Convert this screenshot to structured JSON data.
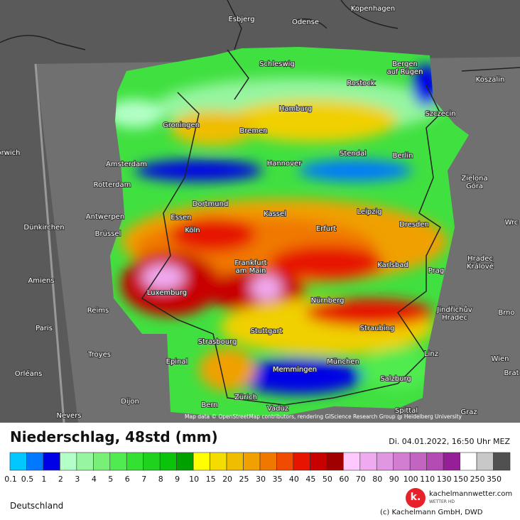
{
  "map": {
    "cities": [
      "Kopenhagen",
      "Esbjerg",
      "Odense",
      "Schleswig",
      "Bergen\nauf Rügen",
      "Koszalin",
      "Rostock",
      "Hamburg",
      "Szczecin",
      "Groningen",
      "Bremen",
      "Stendal",
      "Berlin",
      "orwich",
      "Amsterdam",
      "Hannover",
      "Zielona\nGóra",
      "Rotterdam",
      "Dortmund",
      "Leipzig",
      "Kassel",
      "Antwerpen",
      "Essen",
      "Dresden",
      "Wrc",
      "Dünkirchen",
      "Brüssel",
      "Köln",
      "Erfurt",
      "Hradec\nKrálové",
      "Frankfurt\nam Main",
      "Karlsbad",
      "Prag",
      "Amiens",
      "Luxemburg",
      "Nürnberg",
      "Reims",
      "Jindřichův\nHradec",
      "Brno",
      "Paris",
      "Stuttgart",
      "Straubing",
      "Strasbourg",
      "Linz",
      "Troyes",
      "Wien",
      "Brat",
      "München",
      "Epinal",
      "Memmingen",
      "Orléans",
      "Salzburg",
      "Zürich",
      "Dijon",
      "Bern",
      "Vaduz",
      "Spittal",
      "Graz",
      "Nevers"
    ],
    "credit": "Map data © OpenStreetMap contributors, rendering GIScience Research Group @ Heidelberg University"
  },
  "legend": {
    "title": "Niederschlag, 48std (mm)",
    "timestamp": "Di. 04.01.2022, 16:50 Uhr MEZ",
    "labels": [
      "0.1",
      "0.5",
      "1",
      "2",
      "3",
      "4",
      "5",
      "6",
      "7",
      "8",
      "9",
      "10",
      "15",
      "20",
      "25",
      "30",
      "35",
      "40",
      "45",
      "50",
      "60",
      "70",
      "80",
      "90",
      "100",
      "110",
      "130",
      "150",
      "250",
      "350"
    ],
    "colors": [
      "#00c8ff",
      "#0078ff",
      "#0000e6",
      "#b4ffc8",
      "#96f5a0",
      "#78f078",
      "#50eb50",
      "#32e132",
      "#1ed21e",
      "#0ac30a",
      "#00a000",
      "#ffff00",
      "#f5dc00",
      "#f0be00",
      "#f0a000",
      "#f07800",
      "#f04b00",
      "#e61400",
      "#c80000",
      "#a00000",
      "#ffc8ff",
      "#f0aaf0",
      "#e196e1",
      "#d27dd2",
      "#c364c3",
      "#b44bb4",
      "#961e96",
      "#ffffff",
      "#c8c8c8",
      "#505050"
    ]
  },
  "footer": {
    "region": "Deutschland",
    "logo": "k.",
    "site": "kachelmannwetter.com",
    "tagline": "WETTER HD",
    "copyright": "(c) Kachelmann GmbH, DWD"
  }
}
